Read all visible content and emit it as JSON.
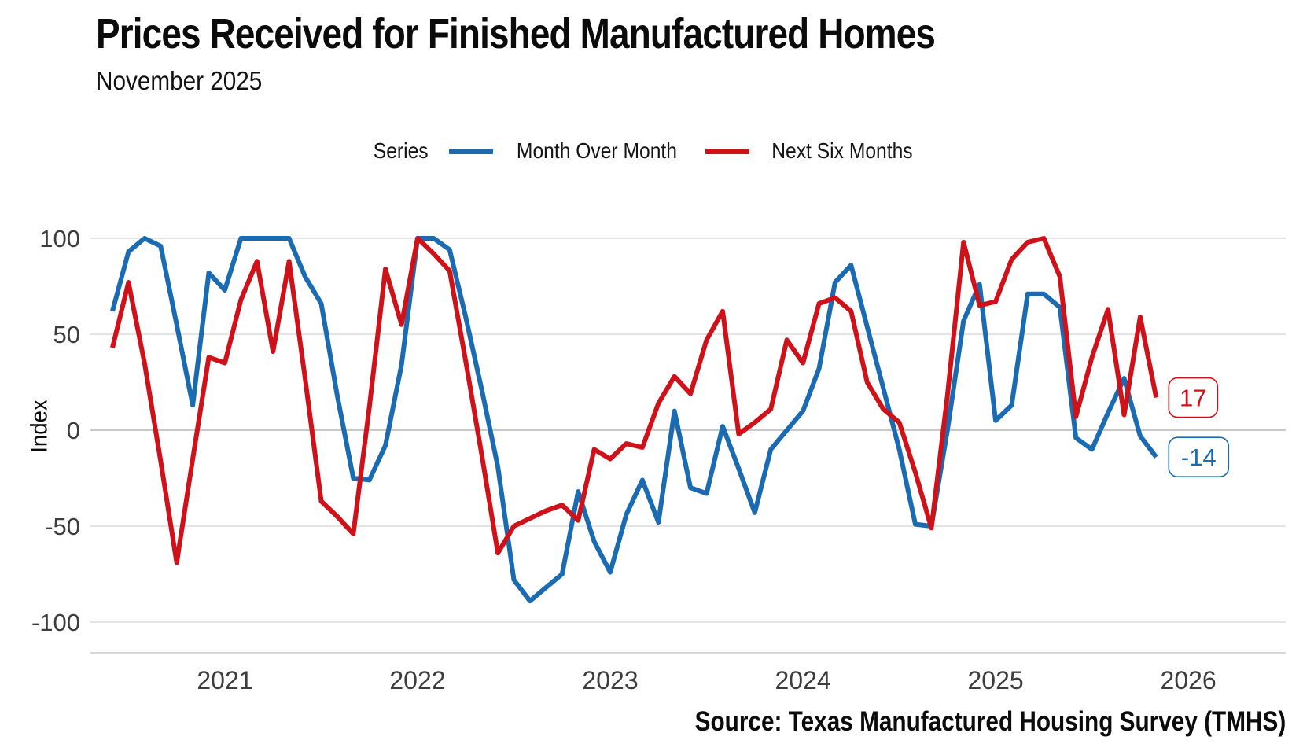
{
  "header": {
    "title": "Prices Received for Finished Manufactured Homes",
    "subtitle": "November 2025"
  },
  "legend": {
    "label": "Series",
    "items": [
      {
        "label": "Month Over Month"
      },
      {
        "label": "Next Six Months"
      }
    ]
  },
  "source": "Source: Texas Manufactured Housing Survey (TMHS)",
  "chart_data": {
    "type": "line",
    "title": "Prices Received for Finished Manufactured Homes",
    "subtitle": "November 2025",
    "xlabel": "",
    "ylabel": "Index",
    "ylim": [
      -100,
      100
    ],
    "grid": "horizontal-only",
    "legend_position": "top-center",
    "x_start_month": "2020-06",
    "x_end_month": "2025-11",
    "x_interval": "monthly",
    "n_points": 66,
    "xticks": [
      {
        "label": "2021",
        "month_index": 7
      },
      {
        "label": "2022",
        "month_index": 19
      },
      {
        "label": "2023",
        "month_index": 31
      },
      {
        "label": "2024",
        "month_index": 43
      },
      {
        "label": "2025",
        "month_index": 55
      },
      {
        "label": "2026",
        "month_index": 67
      }
    ],
    "yticks": [
      {
        "label": "100",
        "value": 100
      },
      {
        "label": "50",
        "value": 50
      },
      {
        "label": "0",
        "value": 0
      },
      {
        "label": "-50",
        "value": -50
      },
      {
        "label": "-100",
        "value": -100
      }
    ],
    "style": {
      "grid_color": "#e4e4e4",
      "zero_grid_color": "#c9c9c9",
      "axis_line_color": "#d8d8d8",
      "tick_label_color": "#3d3d3d",
      "line_width": 6
    },
    "series": [
      {
        "name": "Month Over Month",
        "color": "#1a6bb2",
        "end_label": "-14",
        "values": [
          62,
          93,
          100,
          96,
          55,
          13,
          82,
          73,
          100,
          100,
          100,
          100,
          80,
          66,
          18,
          -25,
          -26,
          -8,
          34,
          100,
          100,
          94,
          59,
          21,
          -19,
          -78,
          -89,
          -82,
          -75,
          -32,
          -58,
          -74,
          -44,
          -26,
          -48,
          10,
          -30,
          -33,
          2,
          -20,
          -43,
          -10,
          0,
          10,
          32,
          77,
          86,
          54,
          22,
          -10,
          -49,
          -50,
          0,
          57,
          76,
          5,
          13,
          71,
          71,
          64,
          -4,
          -10,
          9,
          27,
          -3,
          -14
        ]
      },
      {
        "name": "Next Six Months",
        "color": "#cf1219",
        "end_label": "17",
        "values": [
          43,
          77,
          35,
          -16,
          -69,
          -15,
          38,
          35,
          68,
          88,
          41,
          88,
          27,
          -37,
          -45,
          -54,
          12,
          84,
          55,
          100,
          92,
          83,
          36,
          -13,
          -64,
          -50,
          -46,
          -42,
          -39,
          -47,
          -10,
          -15,
          -7,
          -9,
          14,
          28,
          19,
          47,
          62,
          -2,
          4,
          11,
          47,
          35,
          66,
          69,
          62,
          25,
          11,
          4,
          -22,
          -51,
          18,
          98,
          65,
          67,
          89,
          98,
          100,
          80,
          7,
          38,
          63,
          8,
          59,
          17
        ]
      }
    ]
  }
}
